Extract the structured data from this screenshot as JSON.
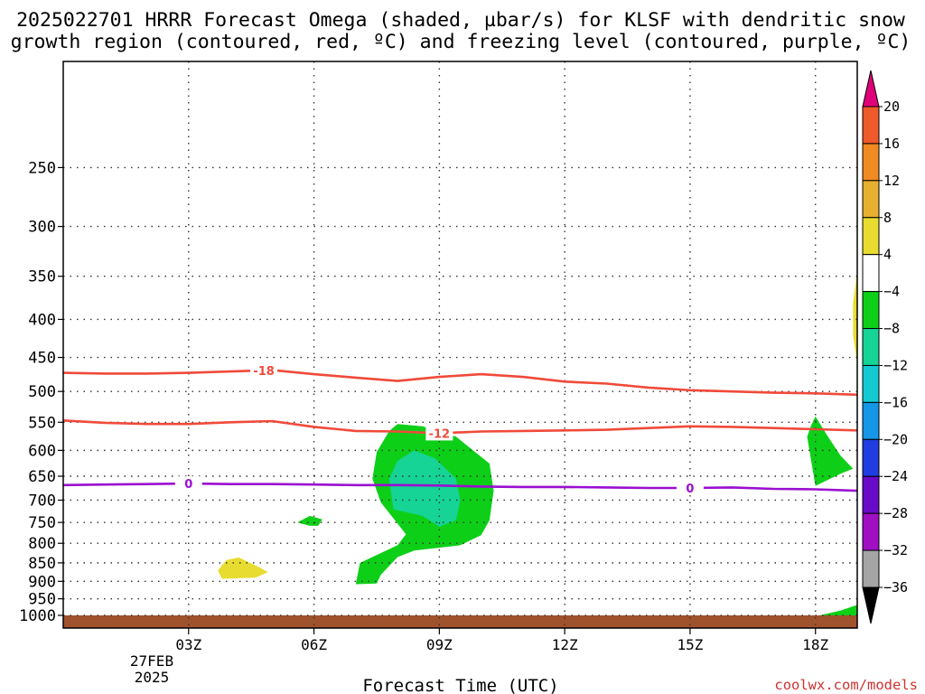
{
  "chart_data": {
    "type": "contour",
    "title_line1": "2025022701 HRRR Forecast Omega (shaded, µbar/s) for KLSF with dendritic snow",
    "title_line2": "growth region (contoured, red, ºC) and freezing level (contoured, purple, ºC)",
    "xlabel": "Forecast Time (UTC)",
    "ylabel": "",
    "x_ticks": [
      {
        "hour": 3,
        "label": "03Z"
      },
      {
        "hour": 6,
        "label": "06Z"
      },
      {
        "hour": 9,
        "label": "09Z"
      },
      {
        "hour": 12,
        "label": "12Z"
      },
      {
        "hour": 15,
        "label": "15Z"
      },
      {
        "hour": 18,
        "label": "18Z"
      }
    ],
    "x_date_line1": "27FEB",
    "x_date_line2": "2025",
    "xlim": [
      0,
      19
    ],
    "ylim": [
      1040,
      180
    ],
    "y_scale": "log",
    "y_ticks": [
      250,
      300,
      350,
      400,
      450,
      500,
      550,
      600,
      650,
      700,
      750,
      800,
      850,
      900,
      950,
      1000
    ],
    "grid": true,
    "colorbar": {
      "labels": [
        "20",
        "16",
        "12",
        "8",
        "4",
        "−4",
        "−8",
        "−12",
        "−16",
        "−20",
        "−24",
        "−28",
        "−32",
        "−36"
      ],
      "top_arrow_color": "#e0007a",
      "bottom_arrow_color": "#000000",
      "colors": [
        "#e83a3a",
        "#ef5a2a",
        "#f08a22",
        "#e8b030",
        "#e8dc30",
        "#ffffff",
        "#0ecf18",
        "#15d495",
        "#15c9d2",
        "#1596e6",
        "#1f3de0",
        "#6a0ac9",
        "#a010c2",
        "#a5a5a5"
      ]
    },
    "contours": [
      {
        "label": "-18",
        "color": "#f04a3a",
        "label_at": 4.8,
        "points": [
          [
            0,
            472
          ],
          [
            1,
            473
          ],
          [
            2,
            473
          ],
          [
            3,
            472
          ],
          [
            4,
            470
          ],
          [
            5,
            468
          ],
          [
            6,
            474
          ],
          [
            7,
            479
          ],
          [
            8,
            484
          ],
          [
            9,
            478
          ],
          [
            10,
            474
          ],
          [
            11,
            478
          ],
          [
            12,
            485
          ],
          [
            13,
            488
          ],
          [
            14,
            494
          ],
          [
            15,
            498
          ],
          [
            16,
            500
          ],
          [
            17,
            502
          ],
          [
            18,
            503
          ],
          [
            19,
            505
          ]
        ]
      },
      {
        "label": "-12",
        "color": "#f04a3a",
        "label_at": 9.0,
        "points": [
          [
            0,
            547
          ],
          [
            1,
            551
          ],
          [
            2,
            553
          ],
          [
            3,
            553
          ],
          [
            4,
            550
          ],
          [
            5,
            548
          ],
          [
            6,
            558
          ],
          [
            7,
            565
          ],
          [
            8,
            566
          ],
          [
            9,
            569
          ],
          [
            10,
            566
          ],
          [
            11,
            565
          ],
          [
            12,
            564
          ],
          [
            13,
            563
          ],
          [
            14,
            560
          ],
          [
            15,
            557
          ],
          [
            16,
            558
          ],
          [
            17,
            560
          ],
          [
            18,
            562
          ],
          [
            19,
            564
          ]
        ]
      },
      {
        "label": "0",
        "color": "#9a0fd0",
        "label_at": 3.0,
        "points": [
          [
            0,
            668
          ],
          [
            1,
            667
          ],
          [
            2,
            666
          ],
          [
            3,
            665
          ],
          [
            4,
            666
          ],
          [
            5,
            666
          ],
          [
            6,
            667
          ],
          [
            7,
            668
          ],
          [
            8,
            668
          ],
          [
            9,
            669
          ],
          [
            10,
            671
          ],
          [
            11,
            672
          ],
          [
            12,
            672
          ],
          [
            13,
            673
          ],
          [
            14,
            674
          ],
          [
            15,
            674
          ],
          [
            16,
            673
          ],
          [
            17,
            676
          ],
          [
            18,
            677
          ],
          [
            19,
            680
          ]
        ]
      },
      {
        "label": "0",
        "color": "#9a0fd0",
        "label_at": 15.0,
        "points": []
      }
    ],
    "shaded_regions": [
      {
        "value_range": "-8 to -4",
        "color": "#0ecf18",
        "points": [
          [
            7.0,
            908
          ],
          [
            7.1,
            850
          ],
          [
            8.0,
            805
          ],
          [
            8.2,
            778
          ],
          [
            7.6,
            705
          ],
          [
            7.4,
            655
          ],
          [
            7.5,
            603
          ],
          [
            7.8,
            565
          ],
          [
            8.0,
            553
          ],
          [
            8.6,
            557
          ],
          [
            9.4,
            575
          ],
          [
            10.2,
            625
          ],
          [
            10.3,
            680
          ],
          [
            10.2,
            745
          ],
          [
            10.0,
            780
          ],
          [
            9.5,
            805
          ],
          [
            8.4,
            818
          ],
          [
            8.0,
            835
          ],
          [
            7.8,
            858
          ],
          [
            7.6,
            882
          ],
          [
            7.5,
            906
          ]
        ]
      },
      {
        "value_range": "-12 to -8",
        "color": "#15d495",
        "points": [
          [
            7.9,
            720
          ],
          [
            7.8,
            655
          ],
          [
            8.0,
            620
          ],
          [
            8.4,
            600
          ],
          [
            8.9,
            615
          ],
          [
            9.4,
            655
          ],
          [
            9.5,
            700
          ],
          [
            9.4,
            745
          ],
          [
            9.0,
            760
          ],
          [
            8.6,
            735
          ]
        ]
      },
      {
        "value_range": "-8 to -4",
        "color": "#0ecf18",
        "points": [
          [
            5.6,
            750
          ],
          [
            5.9,
            735
          ],
          [
            6.2,
            743
          ],
          [
            6.1,
            758
          ],
          [
            5.9,
            758
          ]
        ]
      },
      {
        "value_range": "4 to 8",
        "color": "#e8dc30",
        "points": [
          [
            3.7,
            870
          ],
          [
            3.9,
            843
          ],
          [
            4.2,
            836
          ],
          [
            4.7,
            862
          ],
          [
            4.9,
            875
          ],
          [
            4.6,
            890
          ],
          [
            3.8,
            893
          ]
        ]
      },
      {
        "value_range": "-8 to -4",
        "color": "#0ecf18",
        "points": [
          [
            17.8,
            575
          ],
          [
            17.9,
            555
          ],
          [
            18.0,
            540
          ],
          [
            18.3,
            575
          ],
          [
            18.6,
            610
          ],
          [
            18.9,
            635
          ],
          [
            18.6,
            645
          ],
          [
            18.0,
            670
          ]
        ]
      },
      {
        "value_range": "4 to 8",
        "color": "#e8dc30",
        "points": [
          [
            18.9,
            380
          ],
          [
            19.0,
            345
          ],
          [
            19.0,
            460
          ],
          [
            18.9,
            420
          ]
        ]
      },
      {
        "value_range": "-8 to -4",
        "color": "#0ecf18",
        "points": [
          [
            18.1,
            1000
          ],
          [
            18.6,
            985
          ],
          [
            19.0,
            968
          ],
          [
            19.0,
            1000
          ]
        ]
      }
    ],
    "terrain": {
      "color": "#a0522d",
      "surface_pressure": 1000
    }
  },
  "footer": {
    "credit": "coolwx.com/models"
  }
}
